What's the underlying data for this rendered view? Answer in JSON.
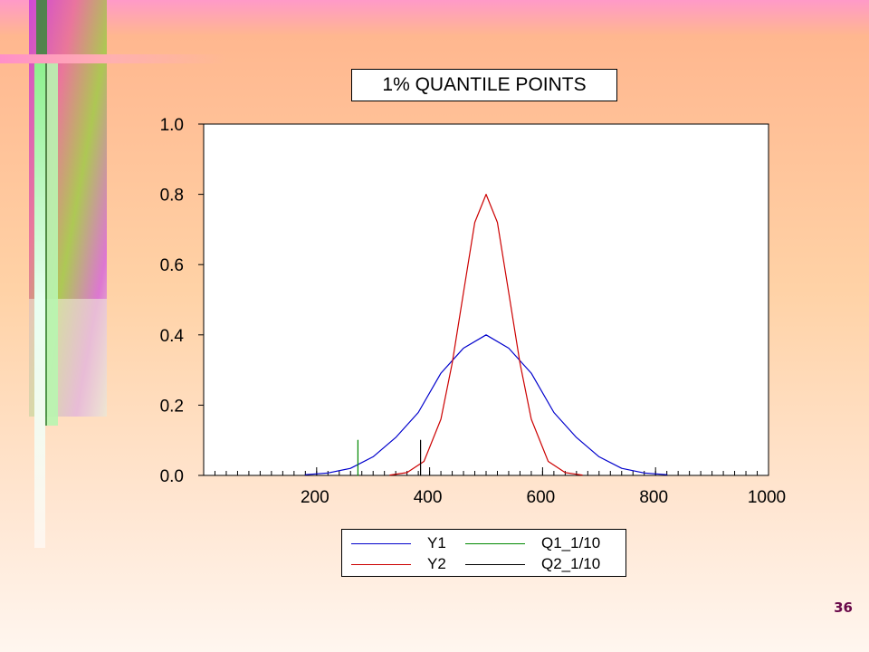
{
  "slide": {
    "page_number": "36",
    "colors": {
      "background_top": "#ff9ac8",
      "background_mid": "#ffd2a6",
      "background_bottom": "#fff6ef",
      "page_number": "#6a0a4a"
    }
  },
  "chart_data": {
    "type": "line",
    "title": "1% QUANTILE POINTS",
    "xlim": [
      0,
      1000
    ],
    "ylim": [
      0.0,
      1.0
    ],
    "x_ticks": [
      200,
      400,
      600,
      800,
      1000
    ],
    "y_ticks": [
      0.0,
      0.2,
      0.4,
      0.6,
      0.8,
      1.0
    ],
    "x_tick_labels": [
      "200",
      "400",
      "600",
      "800",
      "1000"
    ],
    "y_tick_labels": [
      "0.0",
      "0.2",
      "0.4",
      "0.6",
      "0.8",
      "1.0"
    ],
    "grid": false,
    "legend_placement": "bottom",
    "series": [
      {
        "name": "Y1",
        "color": "#0000cc",
        "type": "line",
        "x": [
          180,
          220,
          260,
          300,
          340,
          380,
          420,
          460,
          500,
          540,
          580,
          620,
          660,
          700,
          740,
          780,
          820
        ],
        "y": [
          0.002,
          0.007,
          0.02,
          0.053,
          0.108,
          0.179,
          0.291,
          0.362,
          0.4,
          0.362,
          0.291,
          0.179,
          0.108,
          0.053,
          0.02,
          0.007,
          0.002
        ]
      },
      {
        "name": "Y2",
        "color": "#cc0000",
        "type": "line",
        "x": [
          330,
          360,
          390,
          420,
          440,
          460,
          480,
          500,
          520,
          540,
          560,
          580,
          610,
          640,
          670
        ],
        "y": [
          0.001,
          0.008,
          0.04,
          0.16,
          0.32,
          0.52,
          0.72,
          0.8,
          0.72,
          0.52,
          0.32,
          0.16,
          0.04,
          0.008,
          0.001
        ]
      },
      {
        "name": "Q1_1/10",
        "color": "#008800",
        "type": "vline",
        "x": [
          273,
          273
        ],
        "y": [
          0.0,
          0.1
        ]
      },
      {
        "name": "Q2_1/10",
        "color": "#000000",
        "type": "vline",
        "x": [
          384,
          384
        ],
        "y": [
          0.0,
          0.1
        ]
      }
    ]
  }
}
